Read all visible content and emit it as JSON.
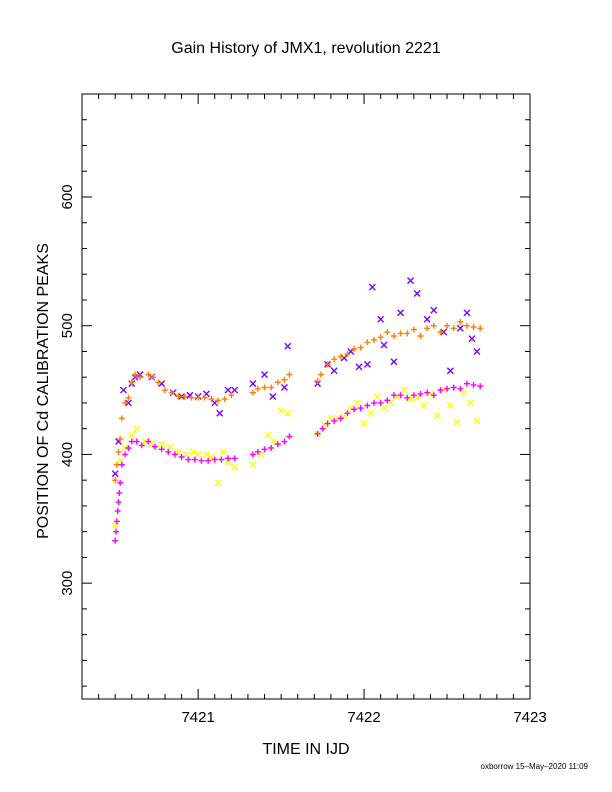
{
  "chart_data": {
    "type": "scatter",
    "title": "Gain History of JMX1, revolution 2221",
    "xlabel": "TIME IN IJD",
    "ylabel": "POSITION OF Cd CALIBRATION PEAKS",
    "xlim": [
      7420.3,
      7423.0
    ],
    "ylim": [
      210,
      680
    ],
    "xticks": [
      "7421",
      "7422",
      "7423"
    ],
    "yticks": [
      "300",
      "400",
      "500",
      "600"
    ],
    "grid": false,
    "series": [
      {
        "marker": "x",
        "color": "#7f00ff",
        "x": [
          7420.5,
          7420.52,
          7420.55,
          7420.58,
          7420.6,
          7420.62,
          7420.65,
          7420.72,
          7420.78,
          7420.85,
          7420.9,
          7420.95,
          7421.0,
          7421.05,
          7421.1,
          7421.13,
          7421.18,
          7421.22,
          7421.33,
          7421.4,
          7421.45,
          7421.52,
          7421.54,
          7421.72,
          7421.78,
          7421.82,
          7421.88,
          7421.92,
          7421.97,
          7422.02,
          7422.05,
          7422.1,
          7422.12,
          7422.18,
          7422.22,
          7422.28,
          7422.32,
          7422.38,
          7422.42,
          7422.48,
          7422.52,
          7422.58,
          7422.62,
          7422.65,
          7422.68
        ],
        "y": [
          385,
          410,
          450,
          440,
          455,
          460,
          462,
          460,
          455,
          448,
          445,
          446,
          445,
          447,
          440,
          432,
          450,
          450,
          455,
          462,
          445,
          452,
          484,
          455,
          470,
          465,
          475,
          480,
          468,
          470,
          530,
          505,
          485,
          472,
          510,
          535,
          525,
          505,
          512,
          495,
          465,
          498,
          510,
          490,
          480
        ]
      },
      {
        "marker": "+",
        "color": "#ff7f00",
        "x": [
          7420.5,
          7420.51,
          7420.52,
          7420.53,
          7420.54,
          7420.56,
          7420.58,
          7420.6,
          7420.62,
          7420.65,
          7420.7,
          7420.73,
          7420.76,
          7420.8,
          7420.84,
          7420.88,
          7420.92,
          7420.96,
          7421.0,
          7421.04,
          7421.08,
          7421.12,
          7421.16,
          7421.2,
          7421.33,
          7421.36,
          7421.4,
          7421.44,
          7421.48,
          7421.52,
          7421.55,
          7421.72,
          7421.74,
          7421.78,
          7421.82,
          7421.86,
          7421.9,
          7421.94,
          7421.98,
          7422.02,
          7422.06,
          7422.1,
          7422.14,
          7422.18,
          7422.22,
          7422.26,
          7422.3,
          7422.34,
          7422.38,
          7422.42,
          7422.46,
          7422.5,
          7422.54,
          7422.58,
          7422.62,
          7422.66,
          7422.7
        ],
        "y": [
          380,
          392,
          402,
          412,
          428,
          440,
          444,
          456,
          462,
          460,
          462,
          460,
          456,
          450,
          448,
          445,
          445,
          444,
          444,
          444,
          443,
          442,
          443,
          446,
          448,
          451,
          452,
          452,
          456,
          458,
          462,
          457,
          462,
          470,
          474,
          476,
          478,
          482,
          483,
          487,
          489,
          491,
          495,
          492,
          494,
          494,
          497,
          492,
          498,
          500,
          495,
          500,
          498,
          503,
          500,
          499,
          498
        ]
      },
      {
        "marker": "x",
        "color": "#ffff00",
        "x": [
          7420.5,
          7420.53,
          7420.56,
          7420.6,
          7420.63,
          7420.68,
          7420.72,
          7420.78,
          7420.83,
          7420.88,
          7420.93,
          7420.97,
          7421.0,
          7421.05,
          7421.08,
          7421.12,
          7421.15,
          7421.18,
          7421.22,
          7421.33,
          7421.38,
          7421.42,
          7421.46,
          7421.5,
          7421.54,
          7421.72,
          7421.76,
          7421.8,
          7421.84,
          7421.88,
          7421.92,
          7421.96,
          7422.0,
          7422.04,
          7422.08,
          7422.12,
          7422.16,
          7422.2,
          7422.24,
          7422.28,
          7422.32,
          7422.36,
          7422.4,
          7422.44,
          7422.48,
          7422.52,
          7422.56,
          7422.6,
          7422.64,
          7422.68
        ],
        "y": [
          345,
          395,
          405,
          415,
          420,
          410,
          408,
          408,
          406,
          402,
          400,
          402,
          400,
          400,
          398,
          378,
          402,
          394,
          390,
          392,
          400,
          415,
          410,
          434,
          432,
          416,
          423,
          428,
          428,
          430,
          436,
          440,
          424,
          432,
          445,
          436,
          440,
          445,
          450,
          443,
          444,
          438,
          447,
          430,
          450,
          438,
          425,
          448,
          440,
          426
        ]
      },
      {
        "marker": "+",
        "color": "#ff00ff",
        "x": [
          7420.5,
          7420.505,
          7420.51,
          7420.515,
          7420.52,
          7420.525,
          7420.53,
          7420.54,
          7420.56,
          7420.58,
          7420.6,
          7420.63,
          7420.66,
          7420.7,
          7420.74,
          7420.78,
          7420.82,
          7420.86,
          7420.9,
          7420.94,
          7420.98,
          7421.02,
          7421.06,
          7421.1,
          7421.14,
          7421.18,
          7421.22,
          7421.33,
          7421.36,
          7421.4,
          7421.44,
          7421.48,
          7421.52,
          7421.55,
          7421.72,
          7421.75,
          7421.78,
          7421.82,
          7421.86,
          7421.9,
          7421.94,
          7421.98,
          7422.02,
          7422.06,
          7422.1,
          7422.14,
          7422.18,
          7422.22,
          7422.26,
          7422.3,
          7422.34,
          7422.38,
          7422.42,
          7422.46,
          7422.5,
          7422.54,
          7422.58,
          7422.62,
          7422.66,
          7422.7
        ],
        "y": [
          333,
          340,
          348,
          356,
          363,
          370,
          378,
          392,
          400,
          405,
          410,
          410,
          407,
          410,
          406,
          404,
          402,
          400,
          398,
          396,
          396,
          395,
          395,
          396,
          396,
          397,
          397,
          400,
          402,
          404,
          405,
          408,
          410,
          414,
          416,
          420,
          424,
          426,
          428,
          432,
          435,
          436,
          438,
          440,
          440,
          442,
          446,
          446,
          444,
          446,
          447,
          448,
          446,
          450,
          451,
          452,
          451,
          455,
          454,
          453
        ]
      }
    ]
  },
  "footer": "oxborrow 15–May–2020 11:09"
}
